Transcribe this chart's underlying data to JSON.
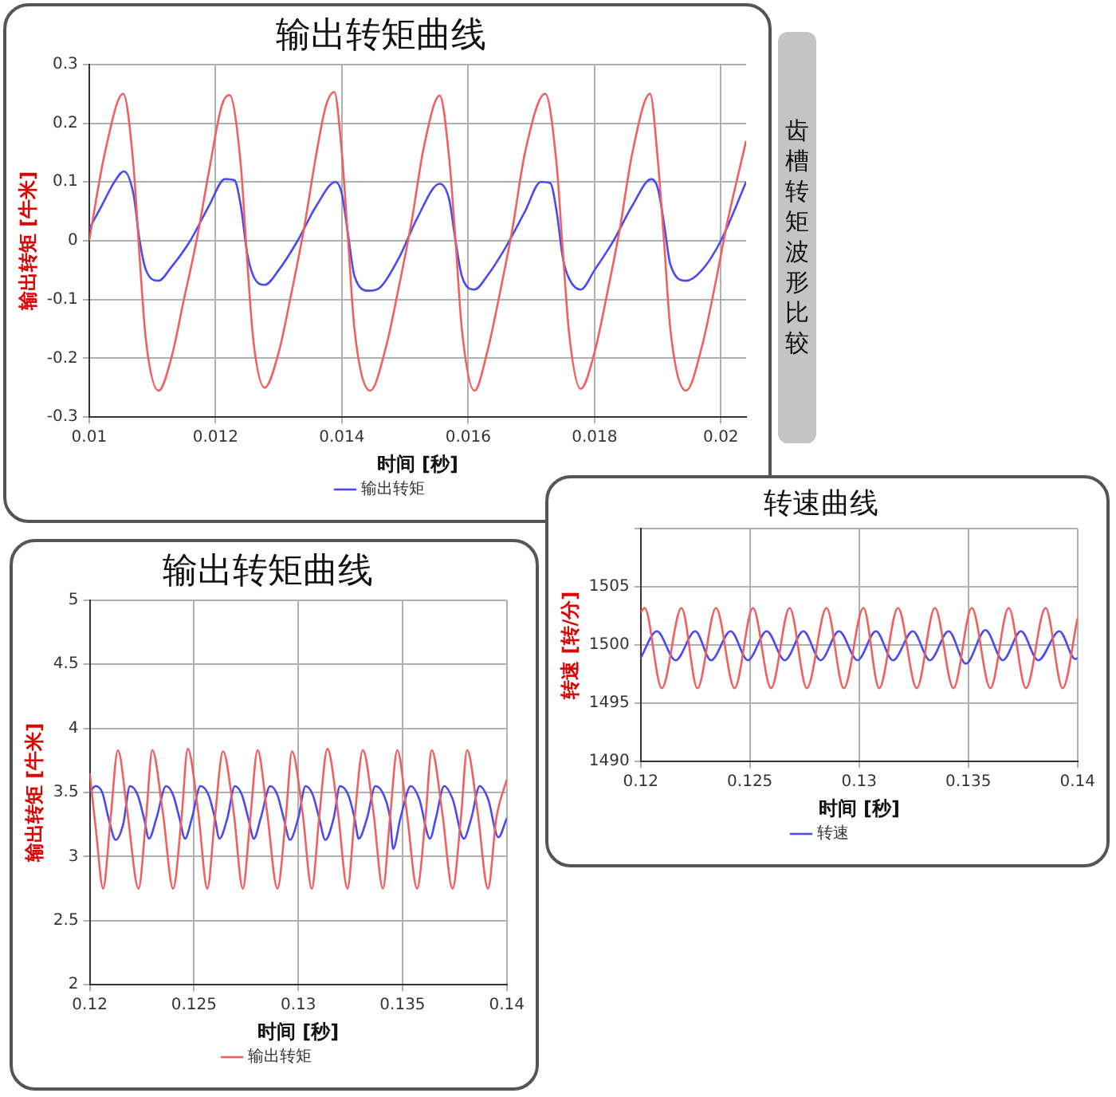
{
  "chart_data": [
    {
      "type": "line",
      "title": "输出转矩曲线",
      "xlabel": "时间 [秒]",
      "ylabel": "输出转矩 [牛米]",
      "annotations": [
        "齿槽转矩波形比较"
      ],
      "xlim": [
        0.01,
        0.0204
      ],
      "xticks": [
        0.01,
        0.012,
        0.014,
        0.016,
        0.018,
        0.02
      ],
      "ylim": [
        -0.3,
        0.3
      ],
      "yticks": [
        -0.3,
        -0.2,
        -0.1,
        0,
        0.1,
        0.2,
        0.3
      ],
      "grid": true,
      "legend": "bottom",
      "series": [
        {
          "color": "#f06060",
          "x": [
            0.01,
            0.01025,
            0.01054,
            0.0107,
            0.0108,
            0.0109,
            0.0111,
            0.0113,
            0.0115,
            0.0117,
            0.0119,
            0.0121,
            0.01222,
            0.0124,
            0.0125,
            0.0126,
            0.01278,
            0.013,
            0.0132,
            0.0134,
            0.0136,
            0.01375,
            0.01388,
            0.014,
            0.0141,
            0.0142,
            0.01445,
            0.0147,
            0.0149,
            0.0151,
            0.0153,
            0.01555,
            0.0157,
            0.0158,
            0.0159,
            0.0161,
            0.0163,
            0.0165,
            0.0167,
            0.0169,
            0.01722,
            0.0174,
            0.0175,
            0.0176,
            0.01778,
            0.018,
            0.0182,
            0.0184,
            0.0186,
            0.01888,
            0.019,
            0.0191,
            0.0192,
            0.01945,
            0.0197,
            0.0199,
            0.0201,
            0.0204
          ],
          "values": [
            0,
            0.15,
            0.25,
            0.13,
            -0.03,
            -0.17,
            -0.255,
            -0.2,
            -0.1,
            0,
            0.12,
            0.23,
            0.248,
            0.13,
            -0.03,
            -0.17,
            -0.25,
            -0.19,
            -0.09,
            0.02,
            0.15,
            0.23,
            0.253,
            0.15,
            0,
            -0.15,
            -0.255,
            -0.18,
            -0.08,
            0.03,
            0.16,
            0.247,
            0.14,
            0,
            -0.15,
            -0.255,
            -0.19,
            -0.09,
            0.02,
            0.15,
            0.25,
            0.13,
            -0.02,
            -0.16,
            -0.252,
            -0.19,
            -0.09,
            0.02,
            0.15,
            0.25,
            0.14,
            0,
            -0.15,
            -0.255,
            -0.18,
            -0.08,
            0.03,
            0.17
          ]
        },
        {
          "name": "输出转矩",
          "color": "#4a4af0",
          "x": [
            0.01,
            0.0102,
            0.0104,
            0.01055,
            0.0107,
            0.0108,
            0.0109,
            0.0111,
            0.0113,
            0.0116,
            0.0119,
            0.01215,
            0.0123,
            0.0124,
            0.0125,
            0.0126,
            0.01278,
            0.013,
            0.0133,
            0.0136,
            0.0139,
            0.014,
            0.0141,
            0.0142,
            0.01443,
            0.0146,
            0.0149,
            0.0152,
            0.01555,
            0.0157,
            0.0158,
            0.0159,
            0.0161,
            0.0163,
            0.0166,
            0.0169,
            0.01715,
            0.0173,
            0.0174,
            0.0175,
            0.0176,
            0.01778,
            0.018,
            0.0183,
            0.0186,
            0.0189,
            0.019,
            0.0191,
            0.0192,
            0.01945,
            0.0197,
            0.02,
            0.0204
          ],
          "values": [
            0.02,
            0.06,
            0.1,
            0.118,
            0.08,
            0,
            -0.05,
            -0.068,
            -0.045,
            0,
            0.06,
            0.105,
            0.103,
            0.06,
            -0.02,
            -0.06,
            -0.075,
            -0.05,
            0,
            0.06,
            0.1,
            0.08,
            0.01,
            -0.06,
            -0.085,
            -0.08,
            -0.03,
            0.04,
            0.097,
            0.07,
            0,
            -0.06,
            -0.083,
            -0.06,
            -0.01,
            0.05,
            0.1,
            0.098,
            0.05,
            -0.03,
            -0.065,
            -0.083,
            -0.05,
            0,
            0.06,
            0.105,
            0.09,
            0.03,
            -0.04,
            -0.068,
            -0.05,
            0,
            0.1
          ]
        }
      ]
    },
    {
      "type": "line",
      "title": "输出转矩曲线",
      "xlabel": "时间 [秒]",
      "ylabel": "输出转矩 [牛米]",
      "xlim": [
        0.12,
        0.14
      ],
      "xticks": [
        0.12,
        0.125,
        0.13,
        0.135,
        0.14
      ],
      "ylim": [
        2,
        5
      ],
      "yticks": [
        2,
        2.5,
        3,
        3.5,
        4,
        4.5,
        5
      ],
      "grid": true,
      "legend": "bottom",
      "series": [
        {
          "name": "输出转矩",
          "color": "#f06060",
          "x": [
            0.12,
            0.1203,
            0.12064,
            0.121,
            0.12135,
            0.1218,
            0.12234,
            0.1227,
            0.123,
            0.1235,
            0.124,
            0.1244,
            0.1247,
            0.1252,
            0.12564,
            0.126,
            0.12639,
            0.1269,
            0.12734,
            0.1277,
            0.12805,
            0.1285,
            0.129,
            0.1294,
            0.1297,
            0.1302,
            0.13065,
            0.131,
            0.1314,
            0.1319,
            0.13236,
            0.1327,
            0.1331,
            0.1336,
            0.13406,
            0.1344,
            0.13475,
            0.1352,
            0.1357,
            0.1361,
            0.1364,
            0.1369,
            0.1374,
            0.1378,
            0.1381,
            0.1386,
            0.1391,
            0.1395,
            0.14
          ],
          "values": [
            3.65,
            3.2,
            2.75,
            3.3,
            3.83,
            3.35,
            2.75,
            3.3,
            3.83,
            3.35,
            2.75,
            3.3,
            3.84,
            3.35,
            2.75,
            3.3,
            3.82,
            3.35,
            2.75,
            3.3,
            3.83,
            3.35,
            2.75,
            3.3,
            3.82,
            3.35,
            2.75,
            3.3,
            3.84,
            3.35,
            2.75,
            3.3,
            3.83,
            3.35,
            2.75,
            3.3,
            3.83,
            3.35,
            2.75,
            3.3,
            3.83,
            3.35,
            2.75,
            3.3,
            3.83,
            3.35,
            2.75,
            3.3,
            3.6
          ]
        },
        {
          "color": "#4a4af0",
          "x": [
            0.12,
            0.12028,
            0.1206,
            0.1209,
            0.12124,
            0.1216,
            0.12193,
            0.1223,
            0.1226,
            0.12284,
            0.1232,
            0.12366,
            0.124,
            0.1243,
            0.12457,
            0.1249,
            0.12531,
            0.1257,
            0.126,
            0.12622,
            0.1266,
            0.12696,
            0.1273,
            0.1276,
            0.12787,
            0.1282,
            0.12866,
            0.129,
            0.1293,
            0.1296,
            0.13,
            0.13035,
            0.1307,
            0.131,
            0.1313,
            0.1317,
            0.132,
            0.1324,
            0.1327,
            0.1329,
            0.1333,
            0.1337,
            0.1341,
            0.1344,
            0.13455,
            0.1349,
            0.1354,
            0.1358,
            0.13632,
            0.1366,
            0.137,
            0.1374,
            0.13794,
            0.1383,
            0.1387,
            0.1391,
            0.1396,
            0.14
          ],
          "values": [
            3.5,
            3.55,
            3.5,
            3.3,
            3.13,
            3.25,
            3.55,
            3.48,
            3.3,
            3.14,
            3.3,
            3.55,
            3.48,
            3.3,
            3.14,
            3.3,
            3.55,
            3.48,
            3.3,
            3.14,
            3.3,
            3.55,
            3.48,
            3.3,
            3.14,
            3.3,
            3.55,
            3.48,
            3.3,
            3.13,
            3.3,
            3.55,
            3.48,
            3.3,
            3.13,
            3.3,
            3.55,
            3.48,
            3.3,
            3.14,
            3.3,
            3.55,
            3.48,
            3.3,
            3.06,
            3.3,
            3.55,
            3.45,
            3.14,
            3.3,
            3.55,
            3.45,
            3.14,
            3.3,
            3.55,
            3.45,
            3.15,
            3.3
          ]
        }
      ]
    },
    {
      "type": "line",
      "title": "转速曲线",
      "xlabel": "时间 [秒]",
      "ylabel": "转速 [转/分]",
      "xlim": [
        0.12,
        0.14
      ],
      "xticks": [
        0.12,
        0.125,
        0.13,
        0.135,
        0.14
      ],
      "ylim": [
        1490,
        1510
      ],
      "yticks": [
        1490,
        1495,
        1500,
        1505,
        {
          "value": 1510,
          "label": null
        }
      ],
      "grid": true,
      "legend": "bottom",
      "series": [
        {
          "color": "#f06060",
          "x": [
            0.12,
            0.12018,
            0.12097,
            0.12187,
            0.1226,
            0.12345,
            0.1243,
            0.12514,
            0.12597,
            0.12682,
            0.12761,
            0.12851,
            0.1293,
            0.1302,
            0.13092,
            0.13178,
            0.13264,
            0.13347,
            0.13432,
            0.13516,
            0.13601,
            0.13685,
            0.13764,
            0.13854,
            0.13932,
            0.14
          ],
          "values": [
            1502.8,
            1503.2,
            1496.3,
            1503.2,
            1496.3,
            1503.2,
            1496.3,
            1503.2,
            1496.3,
            1503.2,
            1496.3,
            1503.2,
            1496.3,
            1503.2,
            1496.3,
            1503.2,
            1496.3,
            1503.2,
            1496.3,
            1503.2,
            1496.3,
            1503.2,
            1496.3,
            1503.2,
            1496.3,
            1502.3
          ]
        },
        {
          "name": "转速",
          "color": "#4a4af0",
          "x": [
            0.12,
            0.12074,
            0.1216,
            0.1225,
            0.12322,
            0.12412,
            0.12491,
            0.12577,
            0.1266,
            0.12745,
            0.12824,
            0.12908,
            0.12993,
            0.13077,
            0.13155,
            0.13246,
            0.13324,
            0.1341,
            0.13489,
            0.13579,
            0.13658,
            0.13741,
            0.1382,
            0.13917,
            0.1399,
            0.14
          ],
          "values": [
            1498.9,
            1501.2,
            1498.7,
            1501.2,
            1498.7,
            1501.2,
            1498.7,
            1501.2,
            1498.7,
            1501.2,
            1498.7,
            1501.2,
            1498.7,
            1501.2,
            1498.7,
            1501.2,
            1498.7,
            1501.2,
            1498.4,
            1501.3,
            1498.7,
            1501.2,
            1498.7,
            1501.2,
            1498.8,
            1498.9
          ]
        }
      ]
    }
  ]
}
